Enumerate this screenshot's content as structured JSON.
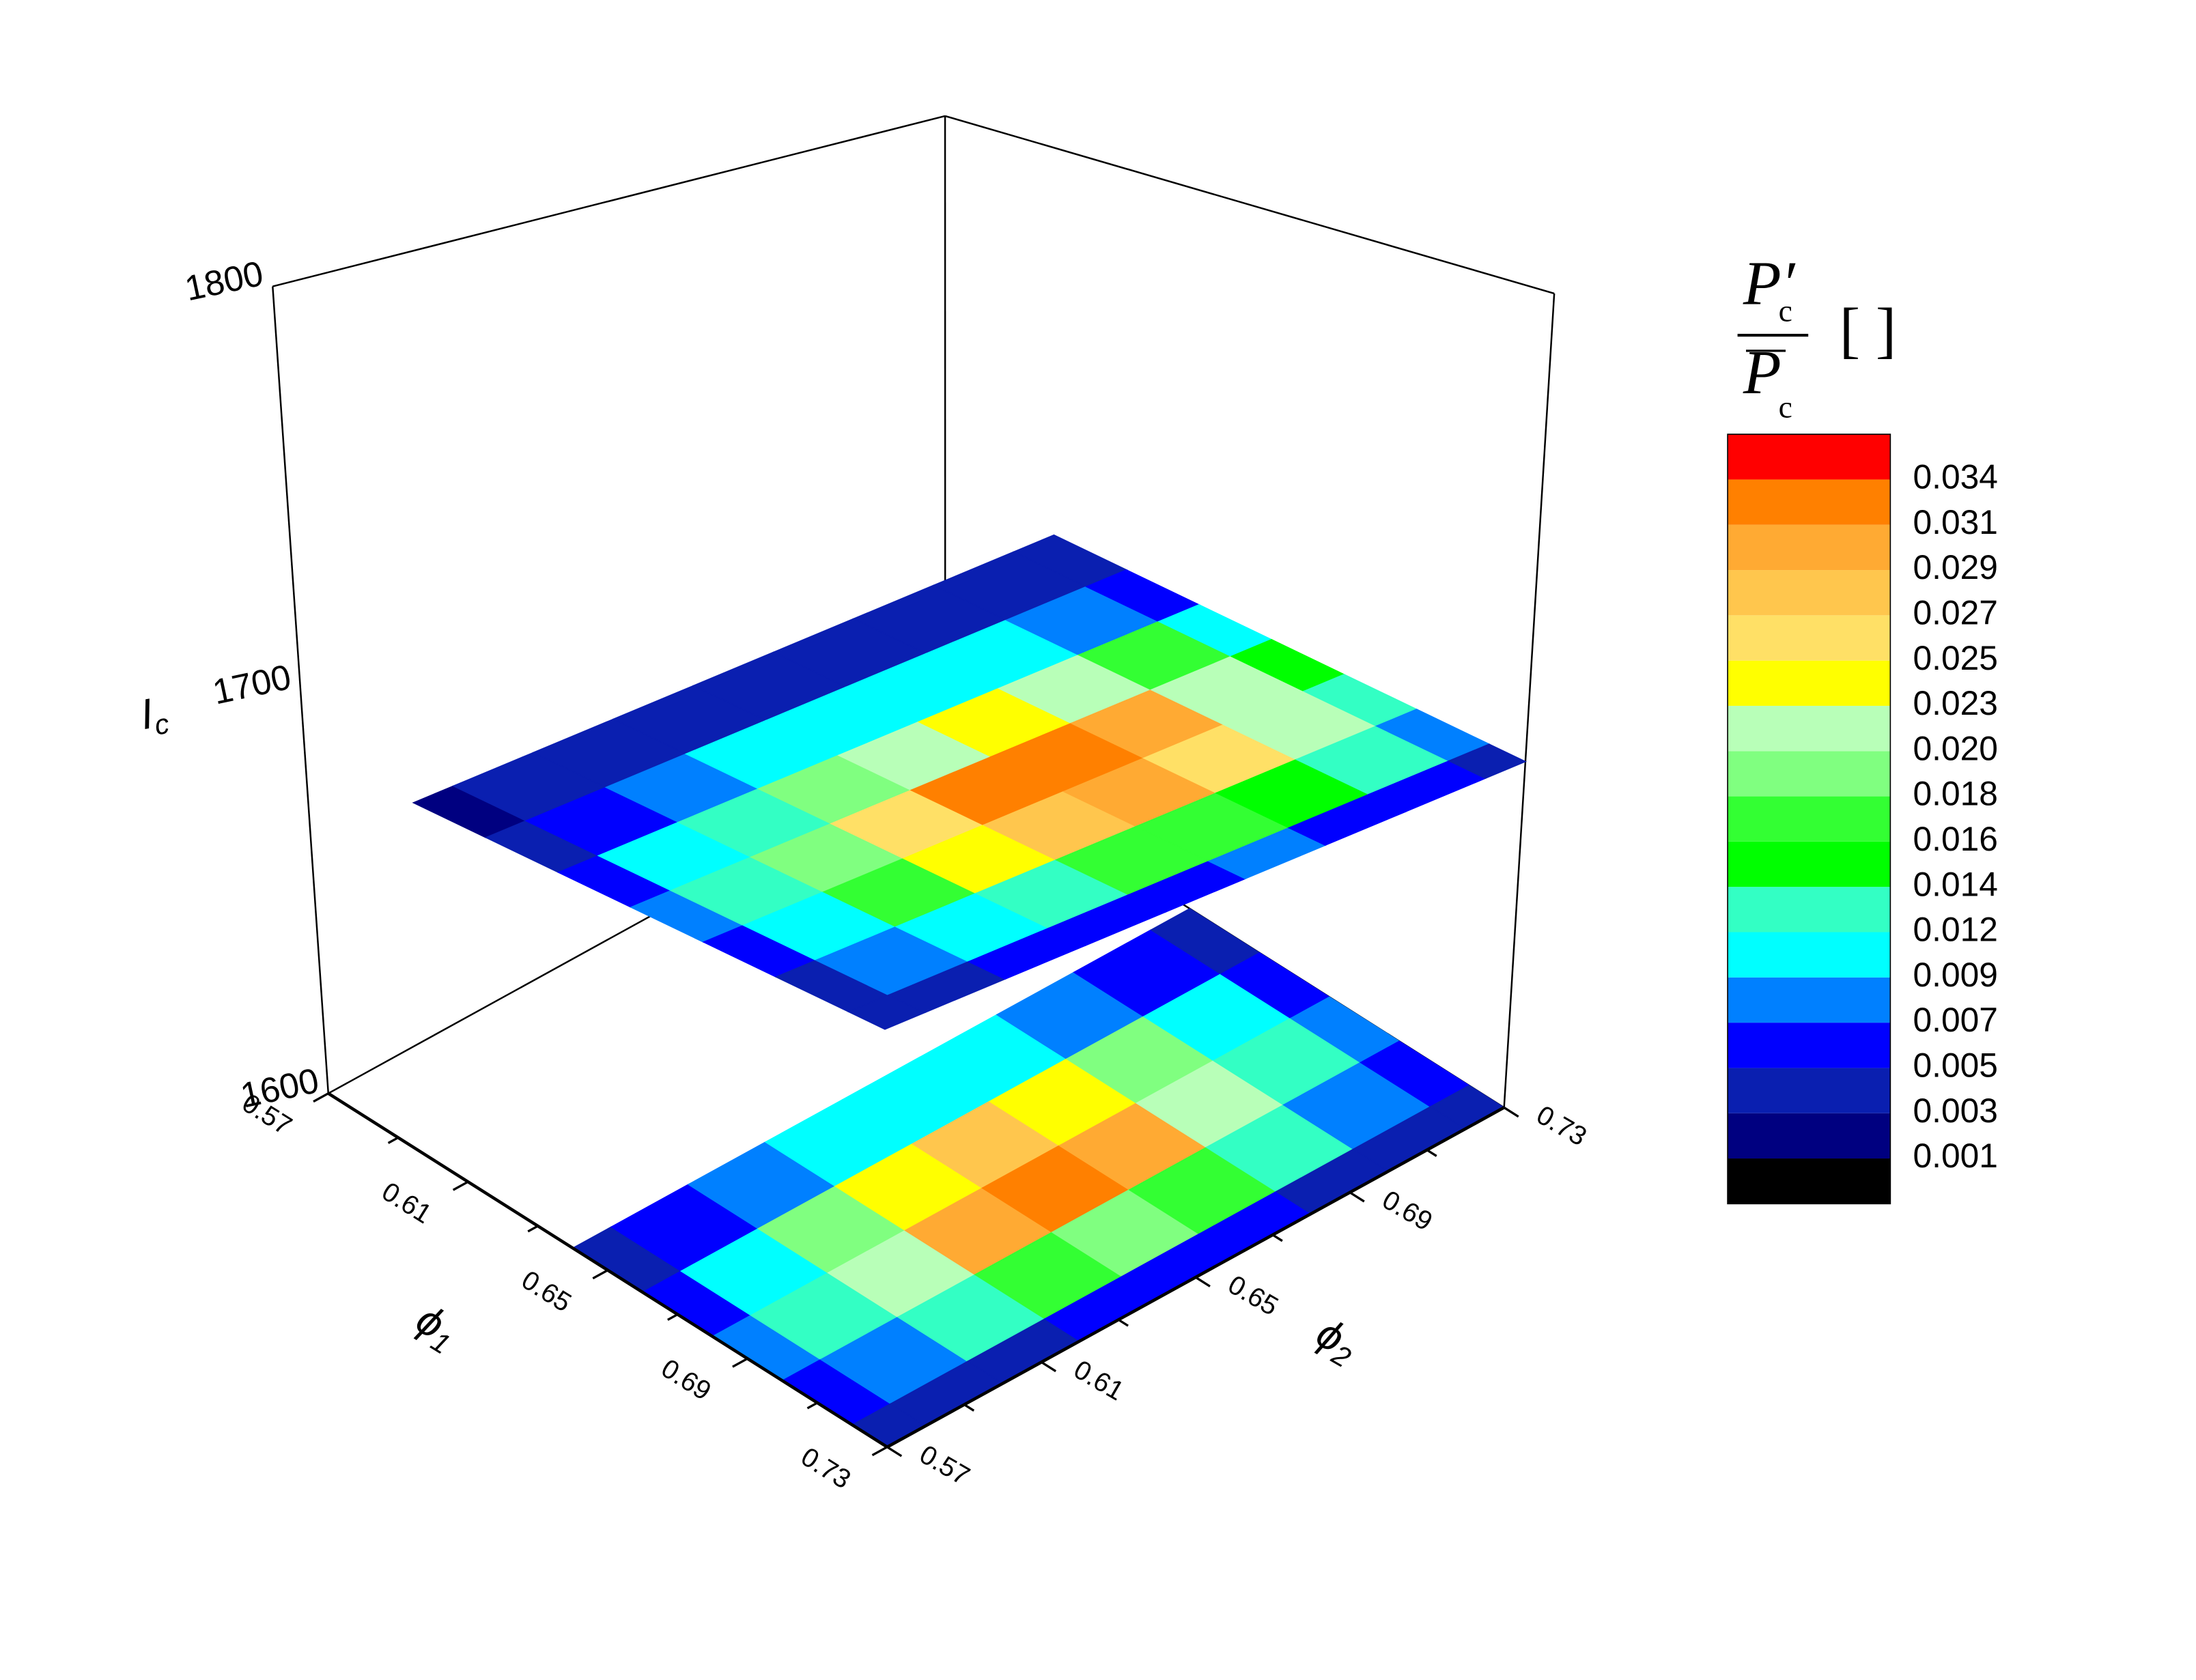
{
  "chart_data": {
    "type": "contour3d",
    "zlabel": "I",
    "zlabel_sub": "c",
    "xlabel": "ϕ",
    "xlabel_sub": "1",
    "ylabel": "ϕ",
    "ylabel_sub": "2",
    "xlim": [
      0.57,
      0.73
    ],
    "xticks": [
      0.57,
      0.61,
      0.65,
      0.69,
      0.73
    ],
    "xminor": [
      0.59,
      0.63,
      0.67,
      0.71
    ],
    "ylim": [
      0.57,
      0.73
    ],
    "yticks": [
      0.57,
      0.61,
      0.65,
      0.69,
      0.73
    ],
    "yminor": [
      0.59,
      0.63,
      0.67,
      0.71
    ],
    "zlim": [
      1600,
      1800
    ],
    "zticks": [
      1600,
      1700,
      1800
    ],
    "planes": [
      {
        "Ic": 1600,
        "phi1": [
          0.57,
          0.59,
          0.61,
          0.63,
          0.65,
          0.67,
          0.69,
          0.71,
          0.73
        ],
        "phi2": [
          0.57,
          0.59,
          0.61,
          0.63,
          0.65,
          0.67,
          0.69,
          0.71,
          0.73
        ],
        "values": [
          [
            null,
            null,
            null,
            null,
            null,
            null,
            null,
            null,
            null
          ],
          [
            null,
            null,
            null,
            null,
            null,
            null,
            null,
            null,
            null
          ],
          [
            null,
            null,
            null,
            null,
            null,
            null,
            null,
            null,
            null
          ],
          [
            null,
            null,
            null,
            null,
            null,
            null,
            null,
            null,
            null
          ],
          [
            0.003,
            0.005,
            0.007,
            0.009,
            0.01,
            0.009,
            0.007,
            0.005,
            0.003
          ],
          [
            0.006,
            0.011,
            0.018,
            0.024,
            0.027,
            0.024,
            0.018,
            0.011,
            0.006
          ],
          [
            0.007,
            0.013,
            0.022,
            0.03,
            0.033,
            0.03,
            0.022,
            0.013,
            0.007
          ],
          [
            0.005,
            0.008,
            0.012,
            0.016,
            0.018,
            0.016,
            0.012,
            0.008,
            0.005
          ],
          [
            0.003,
            0.003,
            0.004,
            0.005,
            0.005,
            0.005,
            0.004,
            0.003,
            0.003
          ]
        ]
      },
      {
        "Ic": 1685,
        "phi1": [
          0.57,
          0.59,
          0.61,
          0.63,
          0.65,
          0.67,
          0.69,
          0.71,
          0.73
        ],
        "phi2": [
          0.57,
          0.59,
          0.61,
          0.63,
          0.65,
          0.67,
          0.69,
          0.71,
          0.73
        ],
        "values": [
          [
            null,
            null,
            null,
            null,
            null,
            null,
            null,
            null,
            null
          ],
          [
            null,
            null,
            null,
            null,
            null,
            null,
            null,
            null,
            null
          ],
          [
            0.002,
            0.003,
            0.003,
            0.004,
            0.004,
            0.004,
            0.004,
            0.003,
            0.003
          ],
          [
            0.003,
            0.005,
            0.007,
            0.009,
            0.01,
            0.011,
            0.01,
            0.008,
            0.006
          ],
          [
            0.005,
            0.009,
            0.013,
            0.018,
            0.022,
            0.023,
            0.02,
            0.016,
            0.011
          ],
          [
            0.007,
            0.012,
            0.018,
            0.026,
            0.031,
            0.032,
            0.029,
            0.022,
            0.015
          ],
          [
            0.006,
            0.011,
            0.017,
            0.023,
            0.028,
            0.029,
            0.026,
            0.02,
            0.013
          ],
          [
            0.004,
            0.007,
            0.01,
            0.013,
            0.016,
            0.016,
            0.015,
            0.012,
            0.008
          ],
          [
            0.003,
            0.004,
            0.005,
            0.006,
            0.006,
            0.007,
            0.006,
            0.005,
            0.004
          ]
        ]
      }
    ],
    "colorbar": {
      "title_num": "P′",
      "title_num_sub": "c",
      "title_den": "P",
      "title_den_sub": "c",
      "unit": "[ ]",
      "levels": [
        0.001,
        0.003,
        0.005,
        0.007,
        0.009,
        0.012,
        0.014,
        0.016,
        0.018,
        {
          "value": 0.02,
          "label": "0.020"
        },
        0.023,
        0.025,
        0.027,
        0.029,
        0.031,
        0.034
      ],
      "colors": [
        "#000000",
        "#000080",
        "#0a1fb0",
        "#0000ff",
        "#0080ff",
        "#00ffff",
        "#33ffc4",
        "#00ff00",
        "#33ff33",
        "#80ff80",
        "#b8ffb8",
        "#ffff00",
        "#ffe066",
        "#ffc64d",
        "#ffaa33",
        "#ff8000",
        "#ff0000"
      ]
    }
  }
}
